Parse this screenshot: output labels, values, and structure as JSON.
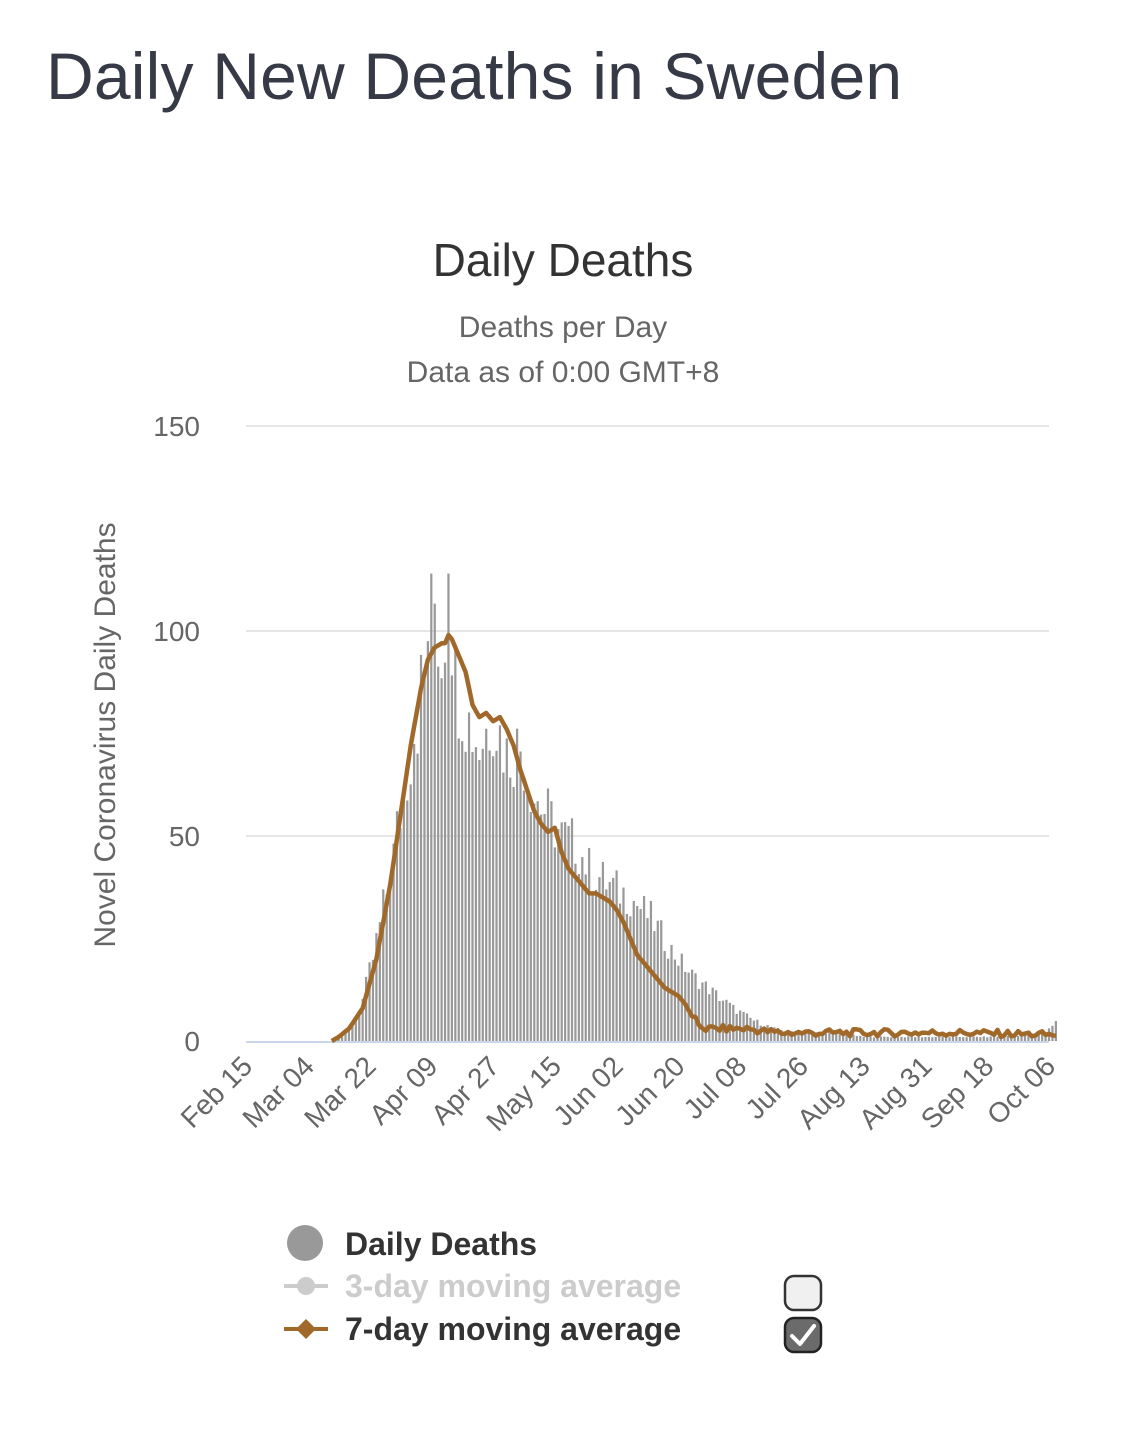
{
  "page": {
    "heading": "Daily New Deaths in Sweden"
  },
  "colors": {
    "heading": "#363a47",
    "bar": "#999999",
    "ma7": "#a0692a",
    "ma3_disabled": "#cccccc",
    "grid": "#e6e6e6",
    "axis": "#ccd6eb"
  },
  "chart_data": {
    "type": "bar",
    "title": "Daily Deaths",
    "subtitle": "Deaths per Day",
    "subtitle2": "Data as of 0:00 GMT+8",
    "xlabel": "",
    "ylabel": "Novel Coronavirus Daily Deaths",
    "ylim": [
      0,
      150
    ],
    "yticks": [
      0,
      50,
      100,
      150
    ],
    "x_tick_labels": [
      "Feb 15",
      "Mar 04",
      "Mar 22",
      "Apr 09",
      "Apr 27",
      "May 15",
      "Jun 02",
      "Jun 20",
      "Jul 08",
      "Jul 26",
      "Aug 13",
      "Aug 31",
      "Sep 18",
      "Oct 06"
    ],
    "day_step_between_ticks": 18,
    "grid": true,
    "series": [
      {
        "name": "Daily Deaths",
        "type": "bar",
        "anchors": [
          [
            0,
            0
          ],
          [
            25,
            0
          ],
          [
            28,
            1
          ],
          [
            31,
            4
          ],
          [
            34,
            10
          ],
          [
            37,
            20
          ],
          [
            40,
            32
          ],
          [
            43,
            45
          ],
          [
            46,
            62
          ],
          [
            49,
            78
          ],
          [
            52,
            88
          ],
          [
            54,
            114
          ],
          [
            57,
            95
          ],
          [
            59,
            114
          ],
          [
            61,
            88
          ],
          [
            64,
            80
          ],
          [
            68,
            72
          ],
          [
            72,
            80
          ],
          [
            76,
            70
          ],
          [
            80,
            72
          ],
          [
            84,
            60
          ],
          [
            88,
            55
          ],
          [
            92,
            50
          ],
          [
            96,
            48
          ],
          [
            100,
            42
          ],
          [
            106,
            38
          ],
          [
            112,
            35
          ],
          [
            118,
            30
          ],
          [
            124,
            22
          ],
          [
            130,
            16
          ],
          [
            136,
            12
          ],
          [
            142,
            8
          ],
          [
            148,
            5
          ],
          [
            154,
            3
          ],
          [
            160,
            2
          ],
          [
            166,
            2
          ],
          [
            172,
            2
          ],
          [
            180,
            1
          ],
          [
            190,
            1
          ],
          [
            205,
            1
          ],
          [
            220,
            1
          ],
          [
            233,
            2
          ],
          [
            236,
            5
          ]
        ]
      },
      {
        "name": "3-day moving average",
        "type": "line",
        "visible": false
      },
      {
        "name": "7-day moving average",
        "type": "line",
        "visible": true,
        "anchors": [
          [
            25,
            0
          ],
          [
            27,
            1
          ],
          [
            30,
            3
          ],
          [
            34,
            8
          ],
          [
            38,
            20
          ],
          [
            42,
            38
          ],
          [
            45,
            55
          ],
          [
            48,
            72
          ],
          [
            51,
            86
          ],
          [
            53,
            93
          ],
          [
            55,
            96
          ],
          [
            57,
            97
          ],
          [
            58,
            97
          ],
          [
            59,
            99
          ],
          [
            60,
            98
          ],
          [
            62,
            94
          ],
          [
            64,
            90
          ],
          [
            66,
            82
          ],
          [
            68,
            79
          ],
          [
            70,
            80
          ],
          [
            72,
            78
          ],
          [
            74,
            79
          ],
          [
            76,
            76
          ],
          [
            78,
            72
          ],
          [
            80,
            66
          ],
          [
            82,
            61
          ],
          [
            84,
            56
          ],
          [
            86,
            53
          ],
          [
            88,
            51
          ],
          [
            90,
            52
          ],
          [
            92,
            46
          ],
          [
            94,
            42
          ],
          [
            96,
            40
          ],
          [
            98,
            38
          ],
          [
            100,
            36
          ],
          [
            102,
            36
          ],
          [
            104,
            35
          ],
          [
            106,
            34
          ],
          [
            108,
            32
          ],
          [
            110,
            29
          ],
          [
            112,
            25
          ],
          [
            114,
            21
          ],
          [
            116,
            19
          ],
          [
            118,
            17
          ],
          [
            120,
            15
          ],
          [
            122,
            13
          ],
          [
            124,
            12
          ],
          [
            126,
            11
          ],
          [
            128,
            9
          ],
          [
            130,
            6
          ],
          [
            132,
            4
          ],
          [
            134,
            3
          ],
          [
            140,
            3
          ],
          [
            146,
            3
          ],
          [
            150,
            2.5
          ],
          [
            156,
            2
          ],
          [
            170,
            2
          ],
          [
            190,
            2
          ],
          [
            210,
            2
          ],
          [
            236,
            1.5
          ]
        ]
      }
    ],
    "legend": [
      {
        "label": "Daily Deaths",
        "enabled": true
      },
      {
        "label": "3-day moving average",
        "enabled": false,
        "checked": false
      },
      {
        "label": "7-day moving average",
        "enabled": true,
        "checked": true
      }
    ]
  }
}
